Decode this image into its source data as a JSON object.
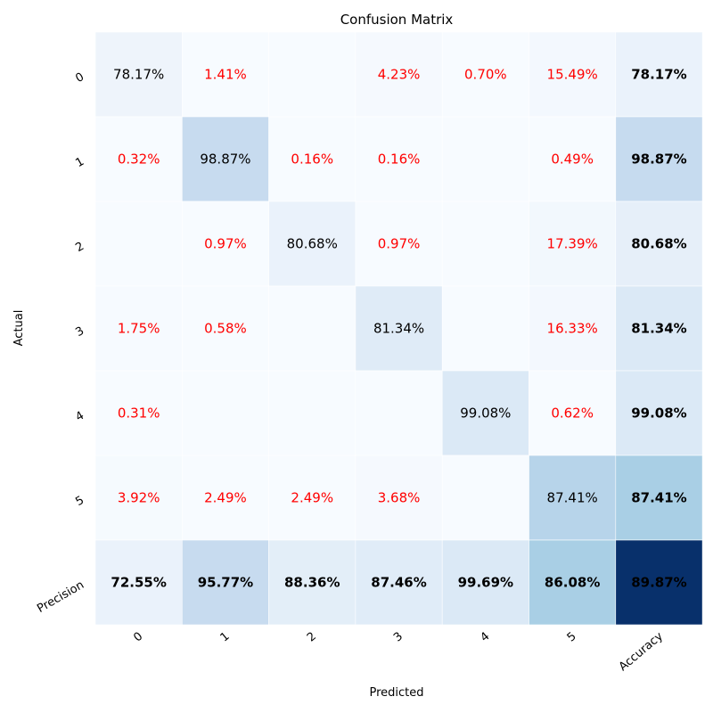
{
  "chart_data": {
    "type": "heatmap",
    "title": "Confusion Matrix",
    "xlabel": "Predicted",
    "ylabel": "Actual",
    "x_tick_labels": [
      "0",
      "1",
      "2",
      "3",
      "4",
      "5",
      "Accuracy"
    ],
    "y_tick_labels": [
      "0",
      "1",
      "2",
      "3",
      "4",
      "5",
      "Precision"
    ],
    "cells": [
      [
        "78.17%",
        "1.41%",
        "",
        "4.23%",
        "0.70%",
        "15.49%",
        "78.17%"
      ],
      [
        "0.32%",
        "98.87%",
        "0.16%",
        "0.16%",
        "",
        "0.49%",
        "98.87%"
      ],
      [
        "",
        "0.97%",
        "80.68%",
        "0.97%",
        "",
        "17.39%",
        "80.68%"
      ],
      [
        "1.75%",
        "0.58%",
        "",
        "81.34%",
        "",
        "16.33%",
        "81.34%"
      ],
      [
        "0.31%",
        "",
        "",
        "",
        "99.08%",
        "0.62%",
        "99.08%"
      ],
      [
        "3.92%",
        "2.49%",
        "2.49%",
        "3.68%",
        "",
        "87.41%",
        "87.41%"
      ],
      [
        "72.55%",
        "95.77%",
        "88.36%",
        "87.46%",
        "99.69%",
        "86.08%",
        "89.87%"
      ]
    ],
    "values": [
      [
        78.17,
        1.41,
        0,
        4.23,
        0.7,
        15.49,
        78.17
      ],
      [
        0.32,
        98.87,
        0.16,
        0.16,
        0,
        0.49,
        98.87
      ],
      [
        0,
        0.97,
        80.68,
        0.97,
        0,
        17.39,
        80.68
      ],
      [
        1.75,
        0.58,
        0,
        81.34,
        0,
        16.33,
        81.34
      ],
      [
        0.31,
        0,
        0,
        0,
        99.08,
        0.62,
        99.08
      ],
      [
        3.92,
        2.49,
        2.49,
        3.68,
        0,
        87.41,
        87.41
      ],
      [
        72.55,
        95.77,
        88.36,
        87.46,
        99.69,
        86.08,
        89.87
      ]
    ],
    "colors": {
      "bg": [
        "#eef4fb",
        "#f7fbff",
        "#f7fbff",
        "#f5f9fe",
        "#f7fbff",
        "#f3f8fe",
        "#eaf2fb",
        "#f7fbff",
        "#c7dbef",
        "#f7fbff",
        "#f7fbff",
        "#f7fbff",
        "#f7fbff",
        "#c6dbef",
        "#f7fbff",
        "#f7fbff",
        "#eaf2fb",
        "#f7fbff",
        "#f7fbff",
        "#f2f8fd",
        "#e6eff9",
        "#f6faff",
        "#f7fbff",
        "#f7fbff",
        "#dfebf7",
        "#f7fbff",
        "#f3f8fe",
        "#dbe9f6",
        "#f7fbff",
        "#f7fbff",
        "#f7fbff",
        "#f7fbff",
        "#dbe9f6",
        "#f7fbff",
        "#dbe9f6",
        "#f5fafe",
        "#f7fbff",
        "#f7fbff",
        "#f5f9fe",
        "#f7fbff",
        "#b7d4ea",
        "#a9cfe5",
        "#eaf2fb",
        "#c7dbef",
        "#e3eef8",
        "#e0ecf8",
        "#dbe9f6",
        "#a9cfe5",
        "#08306b"
      ],
      "diagonal_text": "#000000",
      "off_diagonal_text": "#ff0000",
      "summary_text": "#000000"
    }
  }
}
